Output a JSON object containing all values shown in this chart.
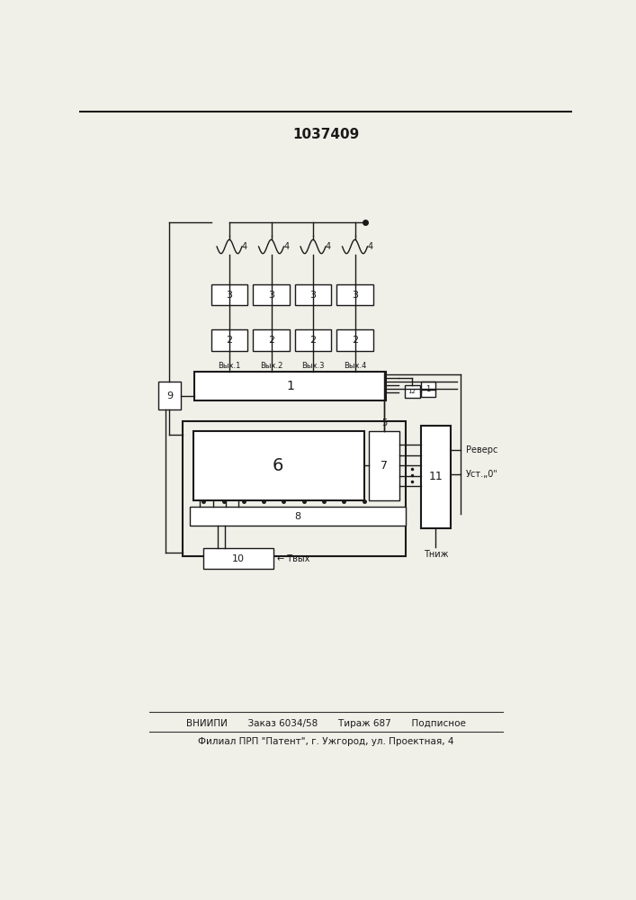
{
  "title": "1037409",
  "bg_color": "#f0efe8",
  "footer_line1": "ВНИИПИ       Заказ 6034/58       Тираж 687       Подписное",
  "footer_line2": "Филиал ПРП \"Патент\", г. Ужгород, ул. Проектная, 4"
}
